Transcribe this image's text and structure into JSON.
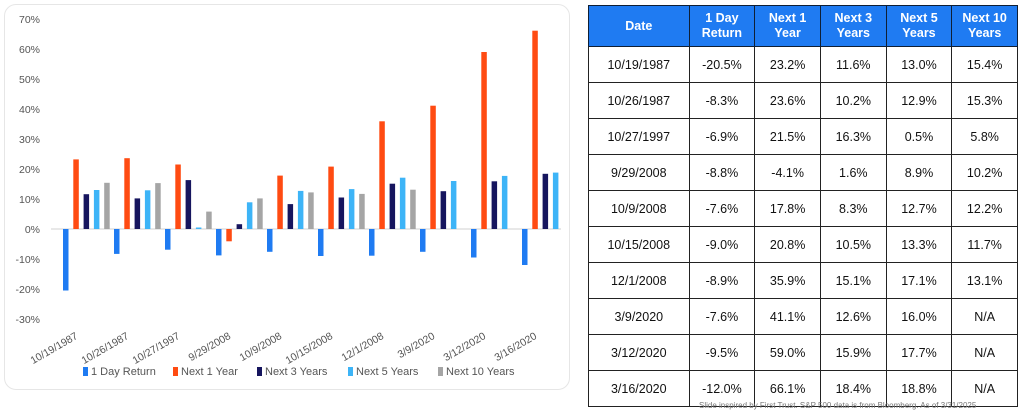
{
  "chart_data": {
    "type": "bar",
    "categories": [
      "10/19/1987",
      "10/26/1987",
      "10/27/1997",
      "9/29/2008",
      "10/9/2008",
      "10/15/2008",
      "12/1/2008",
      "3/9/2020",
      "3/12/2020",
      "3/16/2020"
    ],
    "series": [
      {
        "name": "1 Day Return",
        "color": "#1f7bf2",
        "values": [
          -20.5,
          -8.3,
          -6.9,
          -8.8,
          -7.6,
          -9.0,
          -8.9,
          -7.6,
          -9.5,
          -12.0
        ]
      },
      {
        "name": "Next 1 Year",
        "color": "#ff4b12",
        "values": [
          23.2,
          23.6,
          21.5,
          -4.1,
          17.8,
          20.8,
          35.9,
          41.1,
          59.0,
          66.1
        ]
      },
      {
        "name": "Next 3 Years",
        "color": "#16155e",
        "values": [
          11.6,
          10.2,
          16.3,
          1.6,
          8.3,
          10.5,
          15.1,
          12.6,
          15.9,
          18.4
        ]
      },
      {
        "name": "Next 5 Years",
        "color": "#3db4f7",
        "values": [
          13.0,
          12.9,
          0.5,
          8.9,
          12.7,
          13.3,
          17.1,
          16.0,
          17.7,
          18.8
        ]
      },
      {
        "name": "Next 10 Years",
        "color": "#a5a5a5",
        "values": [
          15.4,
          15.3,
          5.8,
          10.2,
          12.2,
          11.7,
          13.1,
          null,
          null,
          null
        ]
      }
    ],
    "yticks": [
      "70%",
      "60%",
      "50%",
      "40%",
      "30%",
      "20%",
      "10%",
      "0%",
      "-10%",
      "-20%",
      "-30%"
    ],
    "ylim": [
      -30,
      70
    ],
    "grid": false,
    "legend_position": "bottom"
  },
  "table": {
    "headers": [
      "Date",
      "1 Day Return",
      "Next 1 Year",
      "Next 3 Years",
      "Next 5 Years",
      "Next 10 Years"
    ],
    "rows": [
      [
        "10/19/1987",
        "-20.5%",
        "23.2%",
        "11.6%",
        "13.0%",
        "15.4%"
      ],
      [
        "10/26/1987",
        "-8.3%",
        "23.6%",
        "10.2%",
        "12.9%",
        "15.3%"
      ],
      [
        "10/27/1997",
        "-6.9%",
        "21.5%",
        "16.3%",
        "0.5%",
        "5.8%"
      ],
      [
        "9/29/2008",
        "-8.8%",
        "-4.1%",
        "1.6%",
        "8.9%",
        "10.2%"
      ],
      [
        "10/9/2008",
        "-7.6%",
        "17.8%",
        "8.3%",
        "12.7%",
        "12.2%"
      ],
      [
        "10/15/2008",
        "-9.0%",
        "20.8%",
        "10.5%",
        "13.3%",
        "11.7%"
      ],
      [
        "12/1/2008",
        "-8.9%",
        "35.9%",
        "15.1%",
        "17.1%",
        "13.1%"
      ],
      [
        "3/9/2020",
        "-7.6%",
        "41.1%",
        "12.6%",
        "16.0%",
        "N/A"
      ],
      [
        "3/12/2020",
        "-9.5%",
        "59.0%",
        "15.9%",
        "17.7%",
        "N/A"
      ],
      [
        "3/16/2020",
        "-12.0%",
        "66.1%",
        "18.4%",
        "18.8%",
        "N/A"
      ]
    ]
  },
  "footnote": "Slide inspired by First Trust. S&P 500 data is from Bloomberg. As of 3/31/2025"
}
